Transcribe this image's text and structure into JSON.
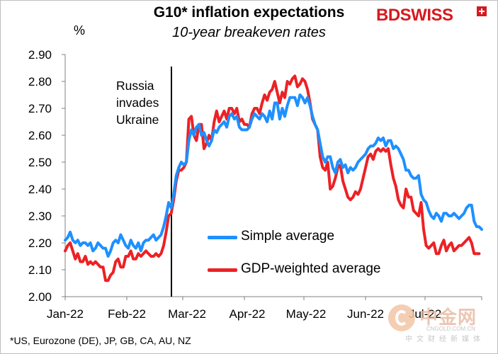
{
  "header": {
    "title": "G10* inflation expectations",
    "subtitle": "10-year breakeven rates",
    "unit": "%"
  },
  "brand": {
    "logo_text": "BDSWISS",
    "color": "#d7191f"
  },
  "annotation": {
    "lines": [
      "Russia",
      "invades",
      "Ukraine"
    ]
  },
  "footnote": "*US, Eurozone (DE), JP, GB, CA, AU, NZ",
  "watermark": {
    "cn": "中金网",
    "url": "CNGOLD.COM.CN",
    "sub": "中文财经新媒体"
  },
  "chart_data": {
    "type": "line",
    "ylim": [
      2.0,
      2.9
    ],
    "yticks": [
      "2.00",
      "2.10",
      "2.20",
      "2.30",
      "2.40",
      "2.50",
      "2.60",
      "2.70",
      "2.80",
      "2.90"
    ],
    "xticks": [
      "Jan-22",
      "Feb-22",
      "Mar-22",
      "Apr-22",
      "May-22",
      "Jun-22",
      "Jul-22"
    ],
    "vline": {
      "date_index": 40,
      "label": "Russia invades Ukraine"
    },
    "series": [
      {
        "name": "Simple average",
        "color": "#1e90ff",
        "values": [
          2.21,
          2.22,
          2.24,
          2.21,
          2.2,
          2.21,
          2.19,
          2.2,
          2.2,
          2.19,
          2.2,
          2.17,
          2.18,
          2.2,
          2.19,
          2.18,
          2.18,
          2.15,
          2.17,
          2.2,
          2.21,
          2.2,
          2.23,
          2.21,
          2.19,
          2.18,
          2.21,
          2.19,
          2.18,
          2.2,
          2.17,
          2.2,
          2.21,
          2.21,
          2.22,
          2.23,
          2.21,
          2.22,
          2.23,
          2.26,
          2.3,
          2.35,
          2.33,
          2.38,
          2.45,
          2.48,
          2.5,
          2.49,
          2.5,
          2.58,
          2.62,
          2.6,
          2.63,
          2.64,
          2.6,
          2.61,
          2.58,
          2.56,
          2.58,
          2.62,
          2.61,
          2.63,
          2.64,
          2.65,
          2.63,
          2.67,
          2.68,
          2.66,
          2.67,
          2.63,
          2.62,
          2.62,
          2.62,
          2.63,
          2.66,
          2.68,
          2.67,
          2.66,
          2.68,
          2.67,
          2.65,
          2.69,
          2.66,
          2.72,
          2.72,
          2.66,
          2.7,
          2.67,
          2.71,
          2.74,
          2.74,
          2.74,
          2.71,
          2.75,
          2.74,
          2.72,
          2.74,
          2.71,
          2.67,
          2.64,
          2.62,
          2.57,
          2.52,
          2.5,
          2.52,
          2.52,
          2.48,
          2.46,
          2.5,
          2.51,
          2.48,
          2.49,
          2.46,
          2.48,
          2.47,
          2.48,
          2.5,
          2.51,
          2.52,
          2.53,
          2.55,
          2.56,
          2.56,
          2.57,
          2.59,
          2.58,
          2.59,
          2.56,
          2.58,
          2.58,
          2.55,
          2.56,
          2.55,
          2.53,
          2.51,
          2.47,
          2.47,
          2.45,
          2.44,
          2.44,
          2.45,
          2.38,
          2.36,
          2.35,
          2.32,
          2.3,
          2.29,
          2.31,
          2.3,
          2.28,
          2.31,
          2.31,
          2.3,
          2.3,
          2.31,
          2.3,
          2.29,
          2.3,
          2.31,
          2.33,
          2.34,
          2.34,
          2.28,
          2.26,
          2.26,
          2.25
        ]
      },
      {
        "name": "GDP-weighted average",
        "color": "#ec2125",
        "values": [
          2.17,
          2.19,
          2.2,
          2.17,
          2.14,
          2.16,
          2.13,
          2.13,
          2.15,
          2.12,
          2.13,
          2.12,
          2.13,
          2.12,
          2.11,
          2.11,
          2.06,
          2.06,
          2.08,
          2.09,
          2.13,
          2.14,
          2.11,
          2.11,
          2.15,
          2.15,
          2.17,
          2.14,
          2.14,
          2.16,
          2.15,
          2.16,
          2.17,
          2.16,
          2.15,
          2.15,
          2.16,
          2.15,
          2.16,
          2.19,
          2.24,
          2.3,
          2.31,
          2.36,
          2.43,
          2.47,
          2.47,
          2.48,
          2.5,
          2.66,
          2.67,
          2.6,
          2.58,
          2.64,
          2.64,
          2.55,
          2.57,
          2.6,
          2.58,
          2.65,
          2.69,
          2.65,
          2.67,
          2.69,
          2.66,
          2.7,
          2.7,
          2.68,
          2.7,
          2.65,
          2.66,
          2.64,
          2.64,
          2.63,
          2.68,
          2.7,
          2.7,
          2.68,
          2.72,
          2.75,
          2.73,
          2.76,
          2.77,
          2.8,
          2.76,
          2.72,
          2.76,
          2.74,
          2.8,
          2.79,
          2.81,
          2.82,
          2.78,
          2.79,
          2.81,
          2.8,
          2.77,
          2.72,
          2.66,
          2.64,
          2.62,
          2.52,
          2.48,
          2.47,
          2.5,
          2.4,
          2.41,
          2.44,
          2.48,
          2.49,
          2.43,
          2.4,
          2.37,
          2.36,
          2.37,
          2.39,
          2.38,
          2.4,
          2.44,
          2.48,
          2.52,
          2.53,
          2.51,
          2.54,
          2.55,
          2.54,
          2.55,
          2.54,
          2.55,
          2.49,
          2.44,
          2.41,
          2.36,
          2.34,
          2.33,
          2.4,
          2.37,
          2.37,
          2.32,
          2.31,
          2.3,
          2.35,
          2.25,
          2.19,
          2.18,
          2.19,
          2.2,
          2.16,
          2.16,
          2.19,
          2.21,
          2.17,
          2.19,
          2.2,
          2.17,
          2.18,
          2.19,
          2.19,
          2.2,
          2.21,
          2.22,
          2.2,
          2.16,
          2.16,
          2.16
        ]
      }
    ]
  }
}
